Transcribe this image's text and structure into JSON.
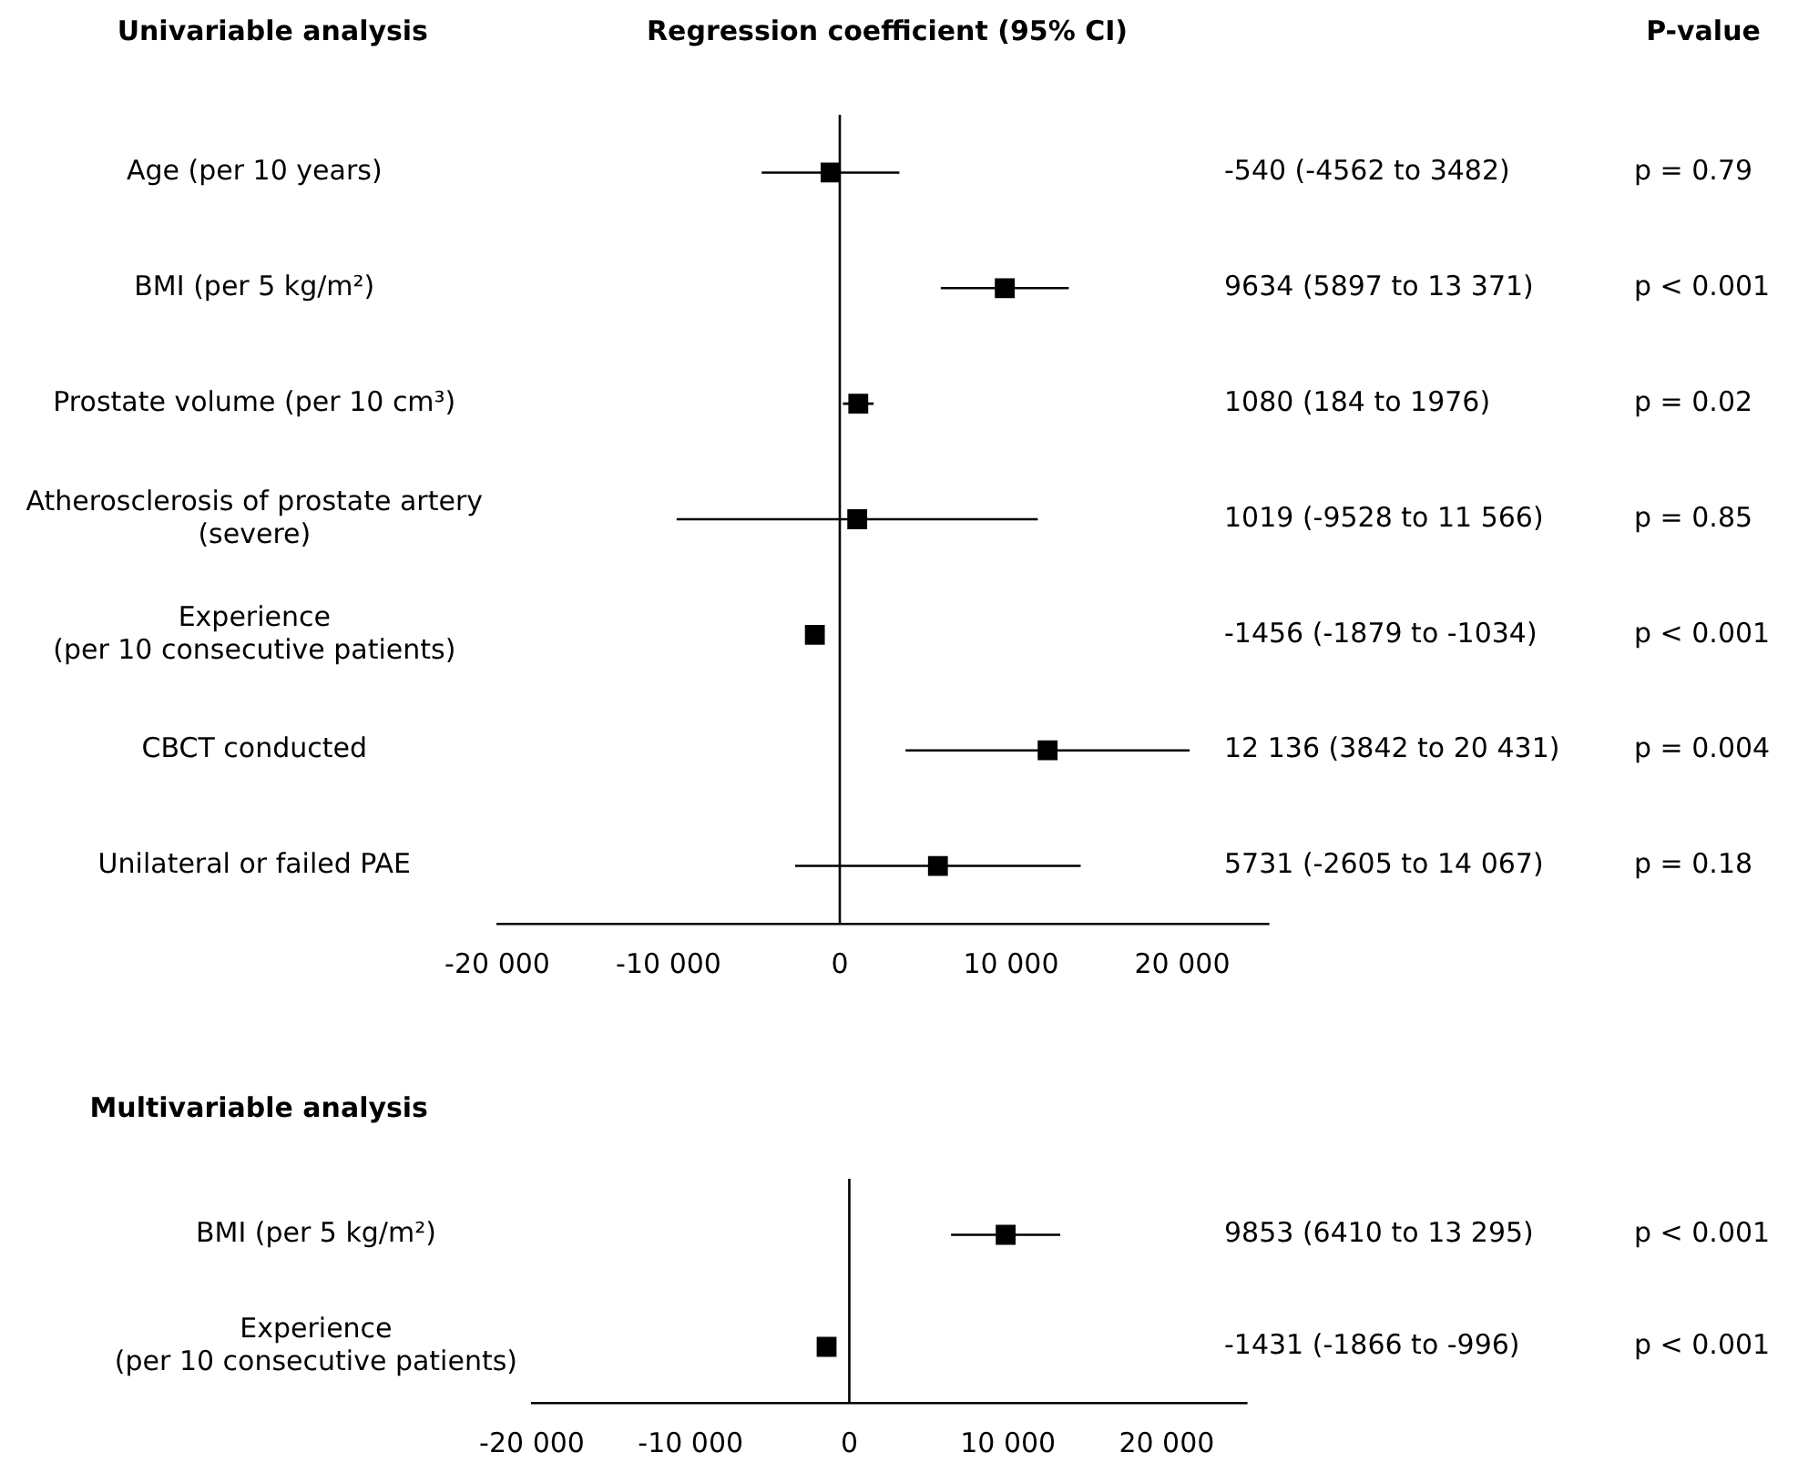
{
  "chart_data": [
    {
      "type": "scatter",
      "orientation": "horizontal",
      "title": "Univariable analysis",
      "subtitle": "Regression coefficient (95% CI)",
      "categories": [
        "Age (per 10 years)",
        "BMI (per 5 kg/m²)",
        "Prostate volume (per 10 cm³)",
        "Atherosclerosis of prostate artery\n(severe)",
        "Experience\n(per 10 consecutive patients)",
        "CBCT conducted",
        "Unilateral or failed PAE"
      ],
      "values": [
        -540,
        9634,
        1080,
        1019,
        -1456,
        12136,
        5731
      ],
      "errors": [
        [
          -4562,
          3482
        ],
        [
          5897,
          13371
        ],
        [
          184,
          1976
        ],
        [
          -9528,
          11566
        ],
        [
          -1879,
          -1034
        ],
        [
          3842,
          20431
        ],
        [
          -2605,
          14067
        ]
      ],
      "color": "#000000",
      "marker": "square",
      "grid": false,
      "legend": false,
      "xlim": [
        -20000,
        25000
      ],
      "xticks": [
        {
          "value": -20000,
          "label": "-20 000"
        },
        {
          "value": -10000,
          "label": "-10 000"
        },
        0,
        {
          "value": 10000,
          "label": "10 000"
        },
        {
          "value": 20000,
          "label": "20 000"
        }
      ],
      "ref_lines": [
        {
          "axis": "x",
          "value": 0,
          "color": "#000000"
        }
      ],
      "annotations": [
        "P-value",
        "-540 (-4562 to 3482)",
        "p = 0.79",
        "9634 (5897 to 13 371)",
        "p < 0.001",
        "1080 (184 to 1976)",
        "p = 0.02",
        "1019 (-9528 to 11 566)",
        "p = 0.85",
        "-1456 (-1879 to -1034)",
        "p < 0.001",
        "12 136 (3842 to 20 431)",
        "p = 0.004",
        "5731 (-2605 to 14 067)",
        "p = 0.18"
      ]
    },
    {
      "type": "scatter",
      "orientation": "horizontal",
      "title": "Multivariable analysis",
      "categories": [
        "BMI (per 5 kg/m²)",
        "Experience\n(per 10 consecutive patients)"
      ],
      "values": [
        9853,
        -1431
      ],
      "errors": [
        [
          6410,
          13295
        ],
        [
          -1866,
          -996
        ]
      ],
      "color": "#000000",
      "marker": "square",
      "grid": false,
      "legend": false,
      "xlim": [
        -20000,
        25000
      ],
      "xticks": [
        {
          "value": -20000,
          "label": "-20 000"
        },
        {
          "value": -10000,
          "label": "-10 000"
        },
        0,
        {
          "value": 10000,
          "label": "10 000"
        },
        {
          "value": 20000,
          "label": "20 000"
        }
      ],
      "ref_lines": [
        {
          "axis": "x",
          "value": 0,
          "color": "#000000"
        }
      ],
      "annotations": [
        "9853 (6410 to 13 295)",
        "p < 0.001",
        "-1431 (-1866 to -996)",
        "p < 0.001"
      ]
    }
  ]
}
